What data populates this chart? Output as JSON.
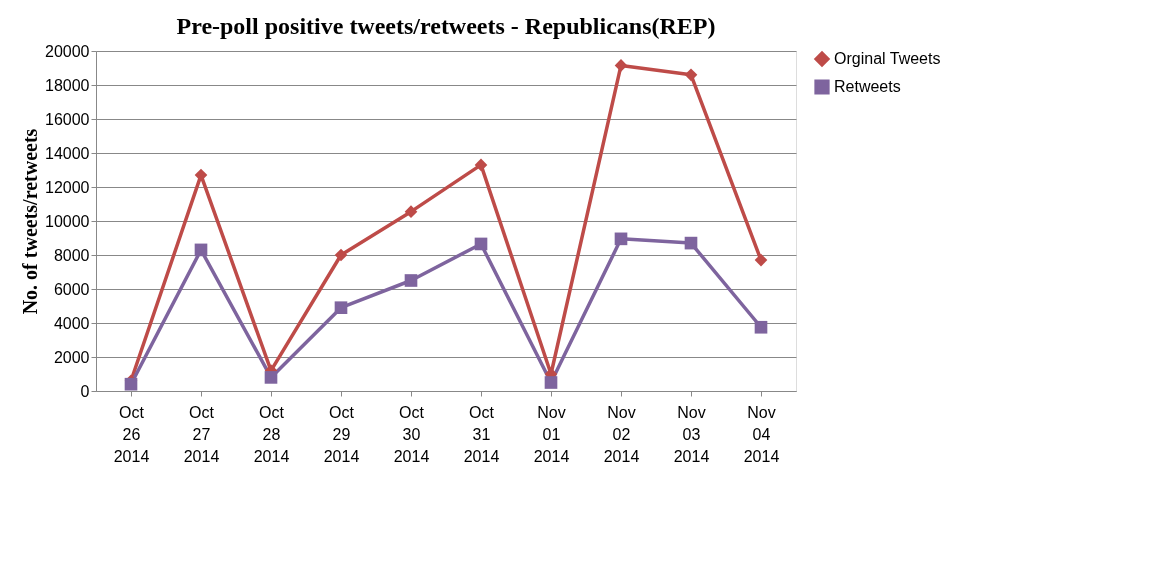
{
  "chart_data": {
    "type": "line",
    "title": "Pre-poll positive tweets/retweets - Republicans(REP)",
    "ylabel": "No. of tweets/retweets",
    "categories": [
      "Oct 26 2014",
      "Oct 27 2014",
      "Oct 28 2014",
      "Oct 29 2014",
      "Oct 30 2014",
      "Oct 31 2014",
      "Nov 01 2014",
      "Nov 02 2014",
      "Nov 03 2014",
      "Nov 04 2014"
    ],
    "series": [
      {
        "name": "Orginal Tweets",
        "color": "#be4b48",
        "marker": "diamond",
        "values": [
          600,
          12700,
          1200,
          8000,
          10550,
          13300,
          1000,
          19150,
          18600,
          7700
        ]
      },
      {
        "name": "Retweets",
        "color": "#7e649e",
        "marker": "square",
        "values": [
          400,
          8300,
          800,
          4900,
          6500,
          8650,
          500,
          8950,
          8700,
          3750
        ]
      }
    ],
    "ylim": [
      0,
      20000
    ],
    "yticks": [
      0,
      2000,
      4000,
      6000,
      8000,
      10000,
      12000,
      14000,
      16000,
      18000,
      20000
    ],
    "grid": "y",
    "legend": "right"
  }
}
